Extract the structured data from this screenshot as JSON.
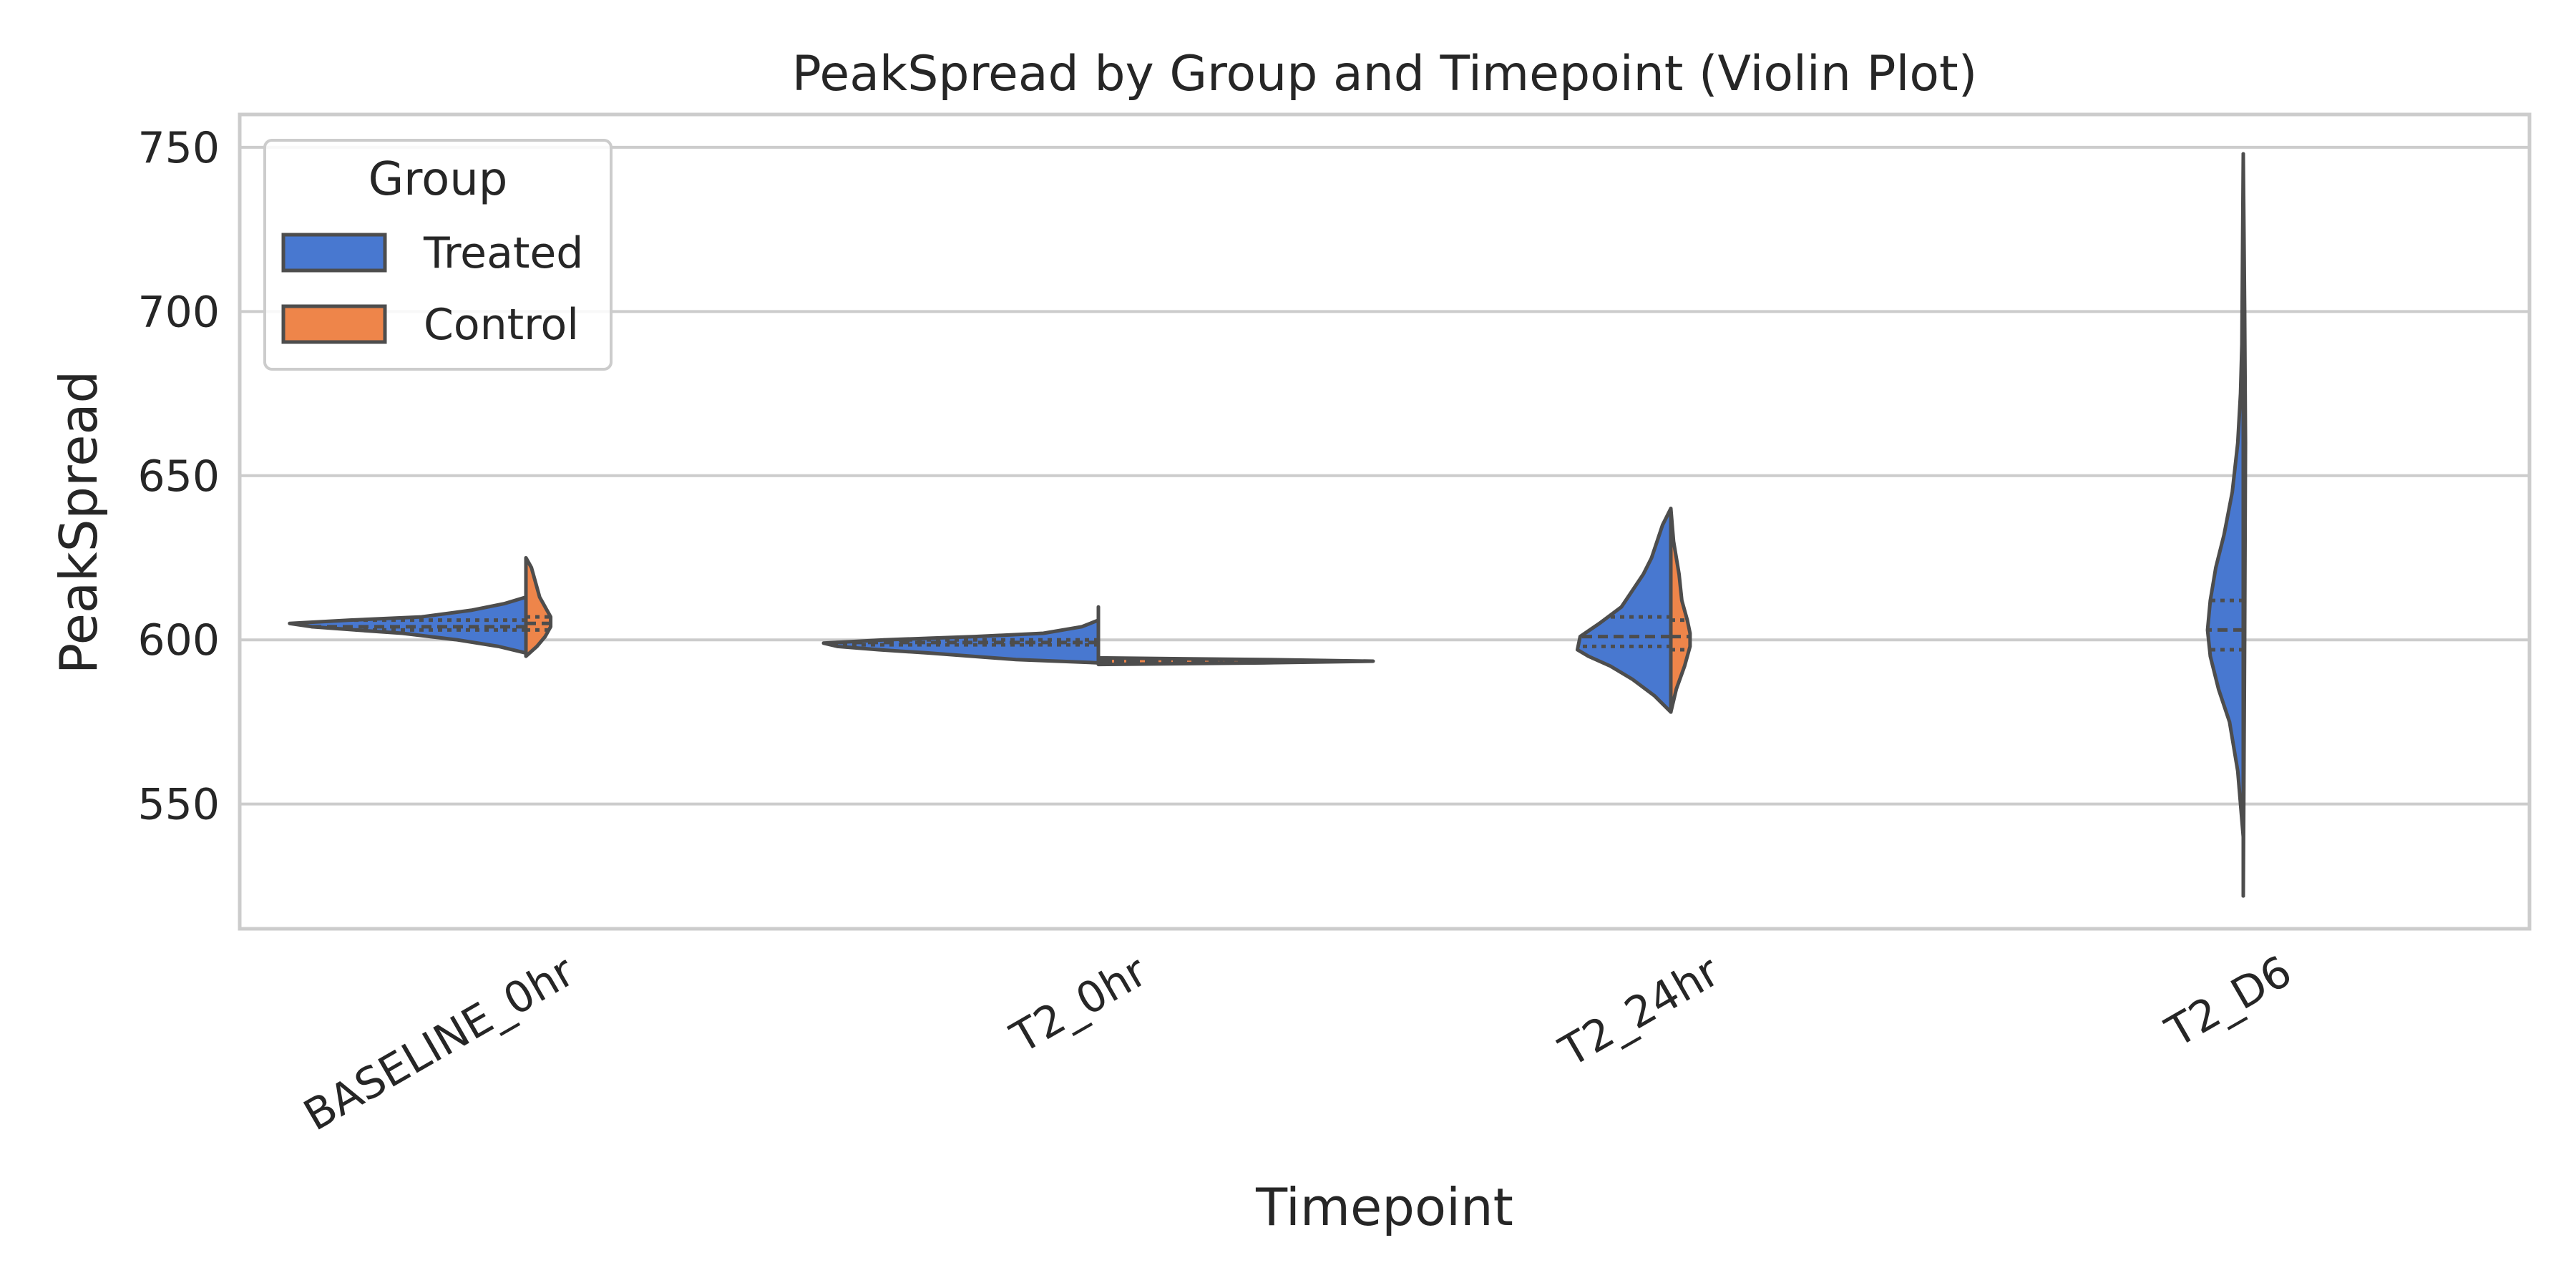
{
  "chart_data": {
    "type": "violin",
    "title": "PeakSpread by Group and Timepoint (Violin Plot)",
    "xlabel": "Timepoint",
    "ylabel": "PeakSpread",
    "categories": [
      "BASELINE_0hr",
      "T2_0hr",
      "T2_24hr",
      "T2_D6"
    ],
    "ylim": [
      512,
      760
    ],
    "yticks": [
      550,
      600,
      650,
      700,
      750
    ],
    "grid": "horizontal",
    "split": true,
    "legend": {
      "title": "Group",
      "placement": "upper-left",
      "entries": [
        {
          "name": "Treated",
          "color": "#4878d0"
        },
        {
          "name": "Control",
          "color": "#ee854a"
        }
      ]
    },
    "series": [
      {
        "name": "Treated",
        "color": "#4878d0",
        "side": "left",
        "violins": [
          {
            "category": "BASELINE_0hr",
            "min": 596,
            "max": 613,
            "quartiles": [
              603,
              604,
              606
            ],
            "profile": [
              [
                596,
                0.0
              ],
              [
                598,
                0.1
              ],
              [
                600,
                0.25
              ],
              [
                602,
                0.45
              ],
              [
                603,
                0.62
              ],
              [
                604,
                0.78
              ],
              [
                605,
                0.86
              ],
              [
                606,
                0.64
              ],
              [
                607,
                0.38
              ],
              [
                609,
                0.2
              ],
              [
                611,
                0.08
              ],
              [
                613,
                0.0
              ]
            ]
          },
          {
            "category": "T2_0hr",
            "min": 593,
            "max": 610,
            "quartiles": [
              598.5,
              599.2,
              600
            ],
            "profile": [
              [
                593,
                0.0
              ],
              [
                594,
                0.3
              ],
              [
                596,
                0.62
              ],
              [
                597,
                0.8
              ],
              [
                598,
                0.95
              ],
              [
                599,
                1.0
              ],
              [
                600,
                0.78
              ],
              [
                601,
                0.45
              ],
              [
                602,
                0.2
              ],
              [
                604,
                0.06
              ],
              [
                606,
                0.0
              ],
              [
                610,
                0.0
              ]
            ]
          },
          {
            "category": "T2_24hr",
            "min": 578,
            "max": 640,
            "quartiles": [
              598,
              601,
              607
            ],
            "profile": [
              [
                578,
                0.0
              ],
              [
                583,
                0.06
              ],
              [
                588,
                0.14
              ],
              [
                592,
                0.22
              ],
              [
                595,
                0.3
              ],
              [
                597,
                0.34
              ],
              [
                601,
                0.33
              ],
              [
                605,
                0.26
              ],
              [
                610,
                0.18
              ],
              [
                615,
                0.14
              ],
              [
                620,
                0.1
              ],
              [
                625,
                0.07
              ],
              [
                630,
                0.05
              ],
              [
                635,
                0.03
              ],
              [
                640,
                0.0
              ]
            ]
          },
          {
            "category": "T2_D6",
            "min": 522,
            "max": 748,
            "quartiles": [
              597,
              603,
              612
            ],
            "profile": [
              [
                522,
                0.0
              ],
              [
                540,
                0.0
              ],
              [
                560,
                0.02
              ],
              [
                575,
                0.05
              ],
              [
                585,
                0.09
              ],
              [
                595,
                0.12
              ],
              [
                603,
                0.13
              ],
              [
                612,
                0.12
              ],
              [
                622,
                0.1
              ],
              [
                632,
                0.07
              ],
              [
                645,
                0.04
              ],
              [
                660,
                0.02
              ],
              [
                675,
                0.01
              ],
              [
                690,
                0.005
              ],
              [
                748,
                0.0
              ]
            ]
          }
        ]
      },
      {
        "name": "Control",
        "color": "#ee854a",
        "side": "right",
        "violins": [
          {
            "category": "BASELINE_0hr",
            "min": 595,
            "max": 625,
            "quartiles": [
              603,
              605,
              607
            ],
            "profile": [
              [
                595,
                0.0
              ],
              [
                598,
                0.04
              ],
              [
                601,
                0.07
              ],
              [
                604,
                0.09
              ],
              [
                607,
                0.09
              ],
              [
                610,
                0.07
              ],
              [
                613,
                0.05
              ],
              [
                616,
                0.04
              ],
              [
                619,
                0.03
              ],
              [
                622,
                0.02
              ],
              [
                625,
                0.0
              ]
            ]
          },
          {
            "category": "T2_0hr",
            "min": 592.5,
            "max": 594.5,
            "quartiles": [
              593.3,
              593.5,
              593.7
            ],
            "profile": [
              [
                592.5,
                0.0
              ],
              [
                593,
                0.6
              ],
              [
                593.5,
                1.0
              ],
              [
                594,
                0.6
              ],
              [
                594.5,
                0.0
              ]
            ]
          },
          {
            "category": "T2_24hr",
            "min": 578,
            "max": 640,
            "quartiles": [
              597,
              601,
              606
            ],
            "profile": [
              [
                578,
                0.0
              ],
              [
                585,
                0.02
              ],
              [
                592,
                0.05
              ],
              [
                598,
                0.07
              ],
              [
                602,
                0.07
              ],
              [
                606,
                0.06
              ],
              [
                612,
                0.04
              ],
              [
                620,
                0.03
              ],
              [
                630,
                0.01
              ],
              [
                640,
                0.0
              ]
            ]
          },
          {
            "category": "T2_D6",
            "min": 522,
            "max": 748,
            "quartiles": [
              597,
              603,
              612
            ],
            "profile": [
              [
                522,
                0.0
              ],
              [
                600,
                0.005
              ],
              [
                660,
                0.008
              ],
              [
                700,
                0.005
              ],
              [
                748,
                0.0
              ]
            ]
          }
        ]
      }
    ]
  }
}
